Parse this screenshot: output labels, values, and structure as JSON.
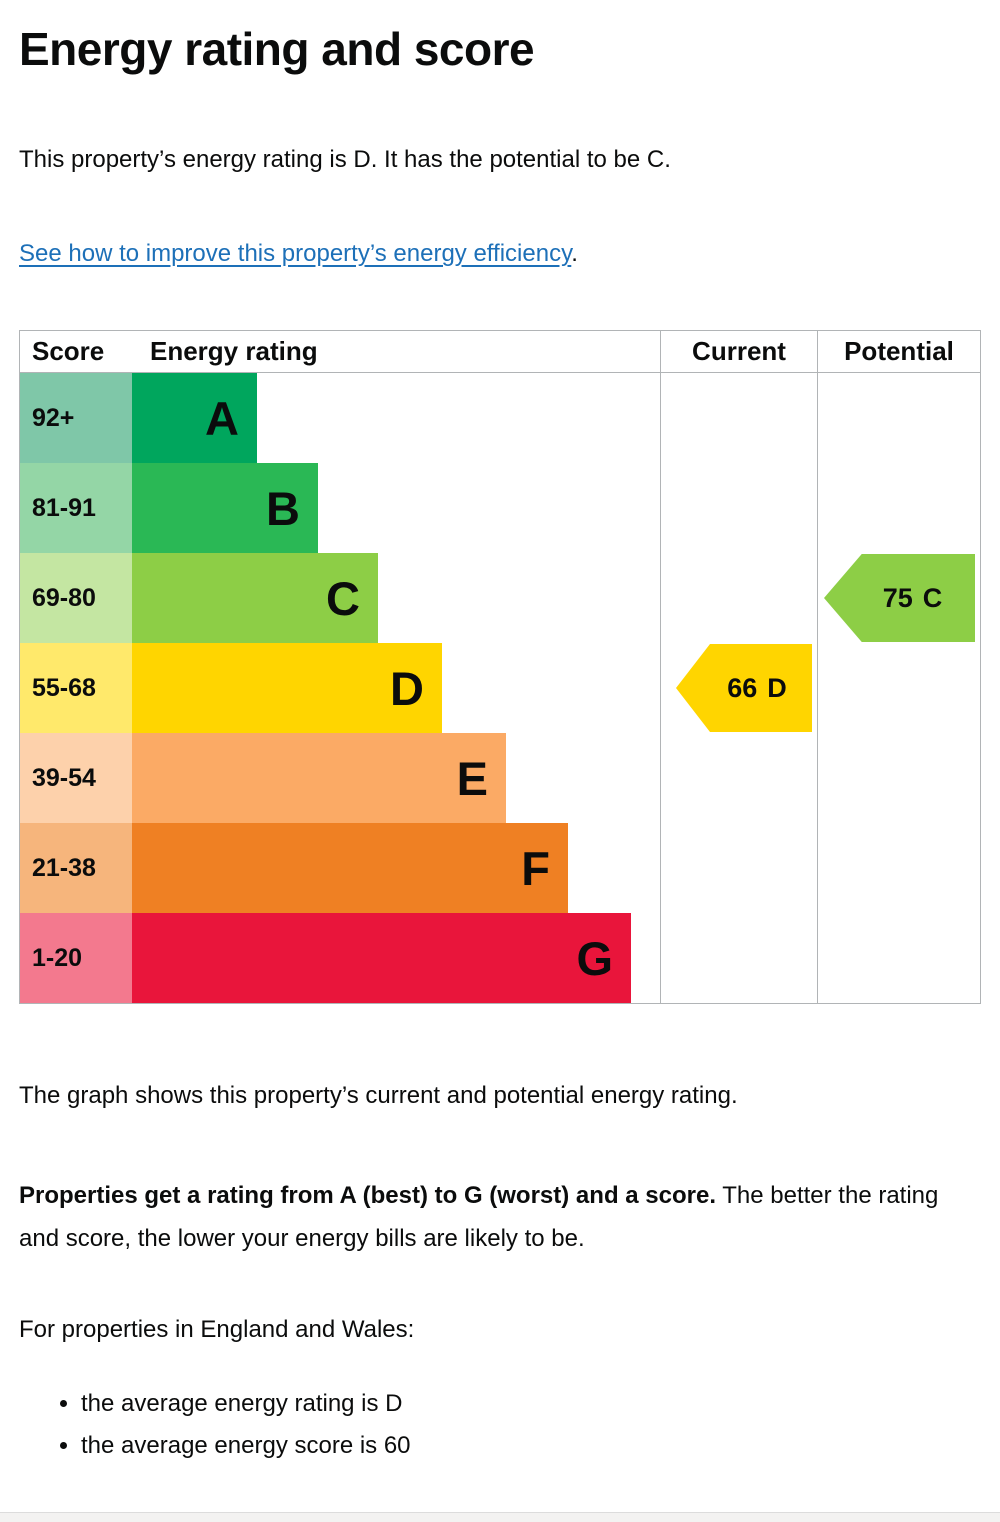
{
  "page": {
    "title": "Energy rating and score",
    "intro": "This property’s energy rating is D. It has the potential to be C.",
    "improve_link": "See how to improve this property’s energy efficiency",
    "improve_link_suffix": ".",
    "graph_caption": "The graph shows this property’s current and potential energy rating.",
    "ratings_bold": "Properties get a rating from A (best) to G (worst) and a score.",
    "ratings_rest": " The better the rating and score, the lower your energy bills are likely to be.",
    "england_wales": "For properties in England and Wales:",
    "bullets": {
      "0": "the average energy rating is D",
      "1": "the average energy score is 60"
    }
  },
  "chart_data": {
    "type": "bar",
    "title": "Energy rating and score",
    "headers": {
      "score": "Score",
      "rating": "Energy rating",
      "current": "Current",
      "potential": "Potential"
    },
    "bands": [
      {
        "score": "92+",
        "letter": "A",
        "color": "#00a65d",
        "score_bg": "#7fc7a8"
      },
      {
        "score": "81-91",
        "letter": "B",
        "color": "#2ab855",
        "score_bg": "#94d6a6"
      },
      {
        "score": "69-80",
        "letter": "C",
        "color": "#8dce46",
        "score_bg": "#c4e6a2"
      },
      {
        "score": "55-68",
        "letter": "D",
        "color": "#ffd500",
        "score_bg": "#ffe96b"
      },
      {
        "score": "39-54",
        "letter": "E",
        "color": "#fbaa65",
        "score_bg": "#fdd1ab"
      },
      {
        "score": "21-38",
        "letter": "F",
        "color": "#ef8023",
        "score_bg": "#f6b57c"
      },
      {
        "score": "1-20",
        "letter": "G",
        "color": "#e9153b",
        "score_bg": "#f3798e"
      }
    ],
    "current": {
      "value": "66",
      "letter": "D",
      "band": "D",
      "color": "#ffd500"
    },
    "potential": {
      "value": "75",
      "letter": "C",
      "band": "C",
      "color": "#8dce46"
    }
  }
}
